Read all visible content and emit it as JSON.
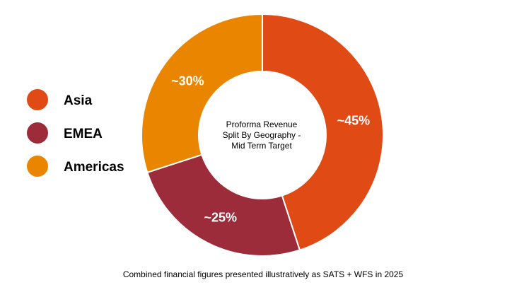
{
  "chart_data": {
    "type": "pie",
    "variant": "donut",
    "center_text": [
      "Proforma Revenue",
      "Split By Geography -",
      "Mid Term Target"
    ],
    "categories": [
      "Asia",
      "EMEA",
      "Americas"
    ],
    "values": [
      45,
      25,
      30
    ],
    "data_labels": [
      "~45%",
      "~25%",
      "~30%"
    ],
    "colors": [
      "#e04a14",
      "#9c2c3a",
      "#ea8500"
    ],
    "legend": {
      "placement": "left",
      "entries": [
        "Asia",
        "EMEA",
        "Americas"
      ]
    },
    "start_angle_deg": 0,
    "direction": "clockwise"
  },
  "footnote": "Combined financial figures presented illustratively as SATS + WFS in 2025"
}
